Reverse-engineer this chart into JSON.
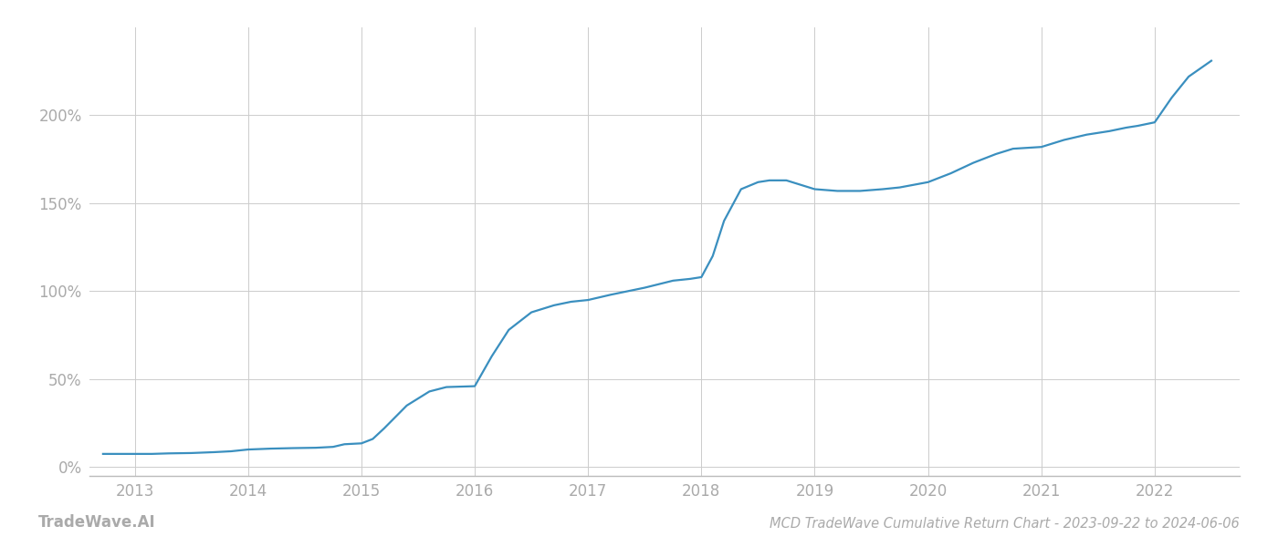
{
  "title": "MCD TradeWave Cumulative Return Chart - 2023-09-22 to 2024-06-06",
  "watermark": "TradeWave.AI",
  "line_color": "#3a8fbf",
  "line_width": 1.6,
  "background_color": "#ffffff",
  "grid_color": "#cccccc",
  "x_years": [
    2013,
    2014,
    2015,
    2016,
    2017,
    2018,
    2019,
    2020,
    2021,
    2022
  ],
  "data_x": [
    2012.72,
    2013.0,
    2013.15,
    2013.3,
    2013.5,
    2013.7,
    2013.85,
    2014.0,
    2014.2,
    2014.4,
    2014.6,
    2014.75,
    2014.85,
    2015.0,
    2015.1,
    2015.2,
    2015.4,
    2015.6,
    2015.75,
    2016.0,
    2016.15,
    2016.3,
    2016.5,
    2016.7,
    2016.85,
    2017.0,
    2017.2,
    2017.5,
    2017.75,
    2017.9,
    2018.0,
    2018.1,
    2018.2,
    2018.35,
    2018.5,
    2018.6,
    2018.75,
    2019.0,
    2019.2,
    2019.4,
    2019.6,
    2019.75,
    2020.0,
    2020.2,
    2020.4,
    2020.6,
    2020.75,
    2021.0,
    2021.2,
    2021.4,
    2021.6,
    2021.75,
    2021.85,
    2022.0,
    2022.15,
    2022.3,
    2022.5
  ],
  "data_y": [
    0.075,
    0.075,
    0.075,
    0.078,
    0.08,
    0.085,
    0.09,
    0.1,
    0.105,
    0.108,
    0.11,
    0.115,
    0.13,
    0.135,
    0.16,
    0.22,
    0.35,
    0.43,
    0.455,
    0.46,
    0.63,
    0.78,
    0.88,
    0.92,
    0.94,
    0.95,
    0.98,
    1.02,
    1.06,
    1.07,
    1.08,
    1.2,
    1.4,
    1.58,
    1.62,
    1.63,
    1.63,
    1.58,
    1.57,
    1.57,
    1.58,
    1.59,
    1.62,
    1.67,
    1.73,
    1.78,
    1.81,
    1.82,
    1.86,
    1.89,
    1.91,
    1.93,
    1.94,
    1.96,
    2.1,
    2.22,
    2.31
  ],
  "ylim": [
    -0.05,
    2.5
  ],
  "yticks": [
    0.0,
    0.5,
    1.0,
    1.5,
    2.0
  ],
  "ytick_labels": [
    "0%",
    "50%",
    "100%",
    "150%",
    "200%"
  ],
  "xlim": [
    2012.6,
    2022.75
  ],
  "title_fontsize": 10.5,
  "tick_fontsize": 12,
  "watermark_fontsize": 12
}
